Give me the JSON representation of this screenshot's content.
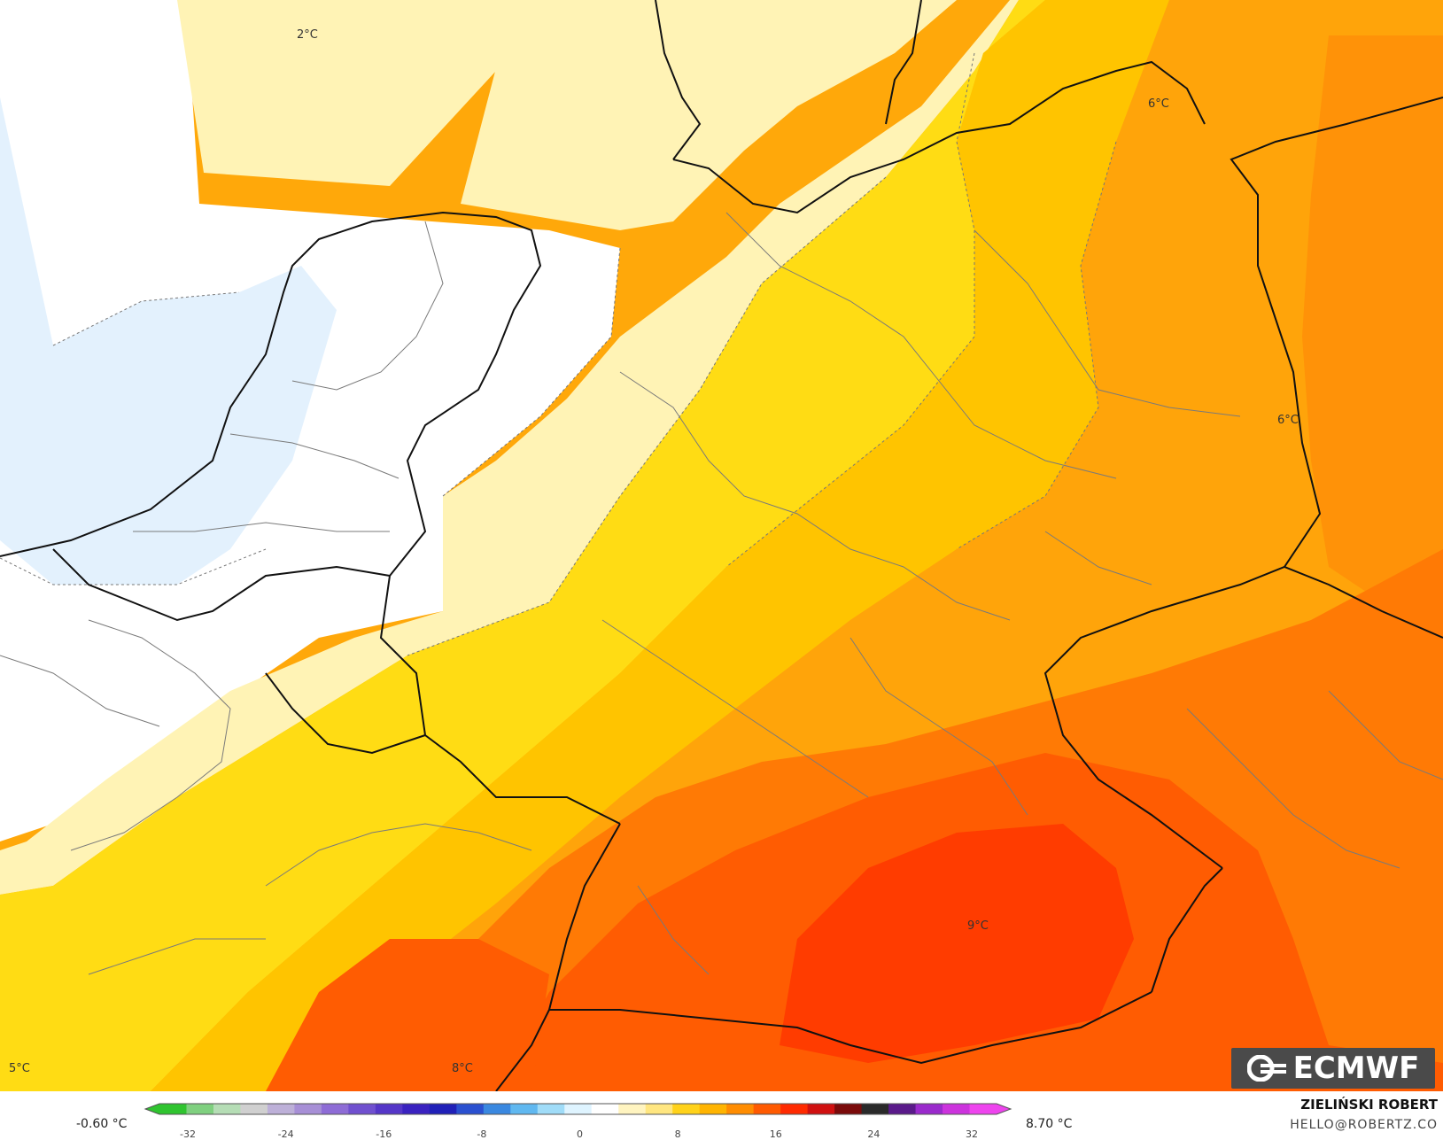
{
  "map": {
    "contour_labels": [
      {
        "text": "2°C"
      },
      {
        "text": "6°C"
      },
      {
        "text": "6°C"
      },
      {
        "text": "9°C"
      },
      {
        "text": "5°C"
      },
      {
        "text": "8°C"
      }
    ]
  },
  "legend": {
    "min_label": "-0.60 °C",
    "max_label": "8.70 °C",
    "ticks": [
      "-32",
      "-24",
      "-16",
      "-8",
      "0",
      "8",
      "16",
      "24",
      "32"
    ],
    "color_stops": [
      "#2fc42f",
      "#7fd07f",
      "#b5ddb5",
      "#d0d0d0",
      "#bdb0d8",
      "#a78fd6",
      "#8e6cd6",
      "#7050cf",
      "#5536c8",
      "#3a22c0",
      "#2020b8",
      "#2a50d0",
      "#3a88e0",
      "#60b8f0",
      "#a0dcf8",
      "#dff4ff",
      "#ffffff",
      "#fff4c0",
      "#ffe680",
      "#ffd21a",
      "#ffb400",
      "#ff8c00",
      "#ff5a00",
      "#ff2a00",
      "#d01010",
      "#7a0a0a",
      "#2a2a2a",
      "#5a1a8a",
      "#9a2acc",
      "#cc33dd",
      "#ee44ee"
    ]
  },
  "credits": {
    "author": "ZIELIŃSKI ROBERT",
    "email": "HELLO@ROBERTZ.CO",
    "logo_text": "ECMWF"
  }
}
